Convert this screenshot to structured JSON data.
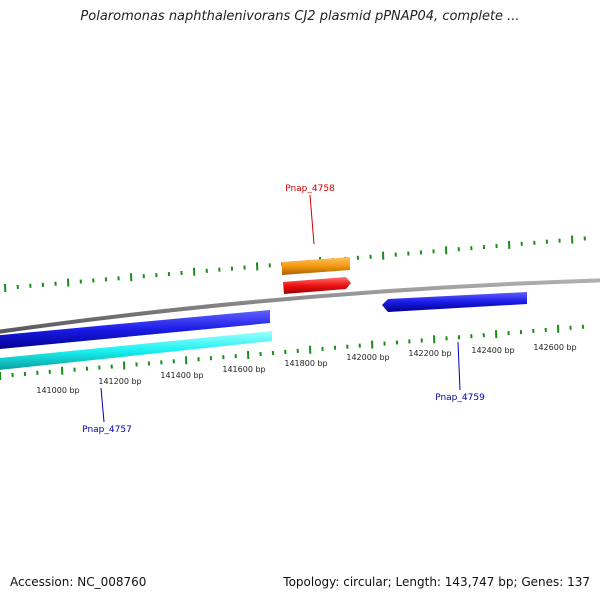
{
  "title": "Polaromonas naphthalenivorans CJ2 plasmid pPNAP04, complete ...",
  "footer": {
    "accession": "Accession: NC_008760",
    "summary": "Topology: circular; Length: 143,747 bp; Genes: 137"
  },
  "colors": {
    "backbone": "#808080",
    "tick_mark": "#1a8c1a",
    "forward_label": "#cc0000",
    "reverse_label": "#0000aa",
    "gene_blue": "#1a1ae6",
    "gene_cyan": "#19f0f0",
    "gene_red": "#ee1111",
    "gene_orange": "#f59a10"
  },
  "scale_labels": [
    "141000 bp",
    "141200 bp",
    "141400 bp",
    "141600 bp",
    "141800 bp",
    "142000 bp",
    "142200 bp",
    "142400 bp",
    "142600 bp"
  ],
  "genes": [
    {
      "label": "Pnap_4757",
      "color": "gene_blue",
      "strand": "reverse"
    },
    {
      "label": "Pnap_4758",
      "color": "gene_red",
      "strand": "forward"
    },
    {
      "label": "Pnap_4759",
      "color": "gene_blue",
      "strand": "reverse"
    }
  ],
  "tracks": [
    {
      "name": "cyan-feature",
      "color": "gene_cyan"
    },
    {
      "name": "orange-feature",
      "color": "gene_orange"
    }
  ]
}
